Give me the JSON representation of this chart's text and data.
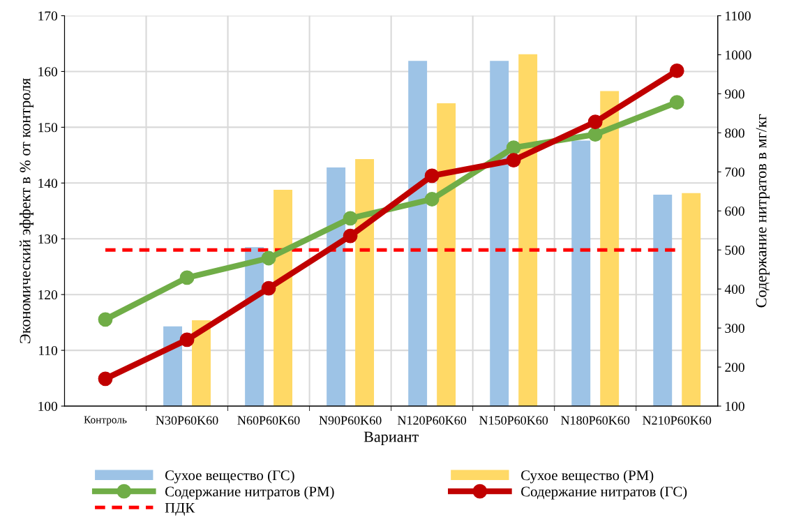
{
  "chart_data": {
    "type": "bar",
    "xlabel": "Вариант",
    "ylabel": "Экономический эффект в % от контроля",
    "y2label": "Содержание нитратов в мг/кг",
    "categories": [
      "Контроль",
      "N30P60K60",
      "N60P60K60",
      "N90P60K60",
      "N120P60K60",
      "N150P60K60",
      "N180P60K60",
      "N210P60K60"
    ],
    "series": [
      {
        "name": "Сухое вещество (ГС)",
        "color": "#9dc3e6",
        "values": [
          null,
          114.3,
          128.5,
          142.8,
          161.9,
          161.9,
          147.6,
          137.9
        ]
      },
      {
        "name": "Сухое вещество (РМ)",
        "color": "#ffd966",
        "values": [
          null,
          115.4,
          138.8,
          144.3,
          154.3,
          163.1,
          156.5,
          138.2
        ]
      },
      {
        "name": "Содержание нитратов (РМ)",
        "type": "line",
        "axis": "y2",
        "color": "#70ad47",
        "values": [
          322,
          429,
          479,
          581,
          630,
          762,
          796,
          878
        ]
      },
      {
        "name": "Содержание нитратов (ГС)",
        "type": "line",
        "axis": "y2",
        "color": "#c00000",
        "values": [
          170,
          270,
          402,
          536,
          690,
          730,
          828,
          959
        ]
      }
    ],
    "ref_lines": [
      {
        "axis": "y2",
        "value": 500,
        "label": "ПДК",
        "color": "#ff0000",
        "line_style": "dashed"
      }
    ],
    "ylim": [
      100,
      170
    ],
    "yticks": [
      100,
      110,
      120,
      130,
      140,
      150,
      160,
      170
    ],
    "y2lim": [
      100,
      1100
    ],
    "y2ticks": [
      100,
      200,
      300,
      400,
      500,
      600,
      700,
      800,
      900,
      1000,
      1100
    ],
    "grid": true,
    "legend": "bottom",
    "marker": "circle",
    "line_style": "solid"
  }
}
